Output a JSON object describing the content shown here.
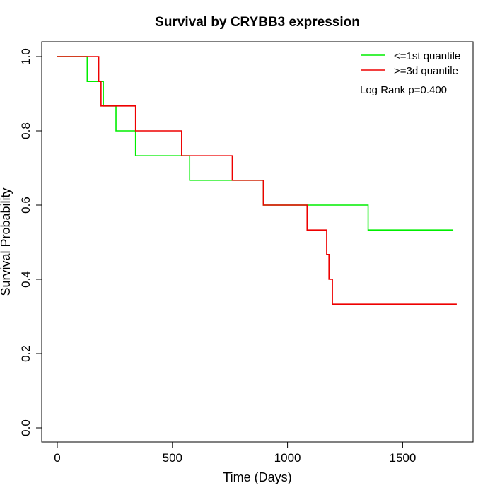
{
  "chart_data": {
    "type": "line",
    "title": "Survival by CRYBB3 expression",
    "xlabel": "Time (Days)",
    "ylabel": "Survival Probability",
    "xlim": [
      0,
      1750
    ],
    "ylim": [
      0,
      1
    ],
    "x_ticks": [
      "0",
      "500",
      "1000",
      "1500"
    ],
    "y_ticks": [
      "0.0",
      "0.2",
      "0.4",
      "0.6",
      "0.8",
      "1.0"
    ],
    "x_tick_values": [
      0,
      500,
      1000,
      1500
    ],
    "y_tick_values": [
      0,
      0.2,
      0.4,
      0.6,
      0.8,
      1.0
    ],
    "grid": false,
    "legend_position": "top-right",
    "annotation": "Log Rank p=0.400",
    "series": [
      {
        "name": "<=1st quantile",
        "color": "#00ee00",
        "step": true,
        "x": [
          0,
          130,
          200,
          255,
          340,
          575,
          890,
          895,
          1350,
          1720
        ],
        "y": [
          1.0,
          0.933,
          0.867,
          0.8,
          0.733,
          0.667,
          0.667,
          0.6,
          0.533,
          0.533
        ]
      },
      {
        "name": ">=3d quantile",
        "color": "#ee0000",
        "step": true,
        "x": [
          0,
          180,
          190,
          340,
          540,
          760,
          895,
          1085,
          1170,
          1180,
          1195,
          1735
        ],
        "y": [
          1.0,
          0.933,
          0.867,
          0.8,
          0.733,
          0.667,
          0.6,
          0.533,
          0.467,
          0.4,
          0.333,
          0.333
        ]
      }
    ]
  }
}
